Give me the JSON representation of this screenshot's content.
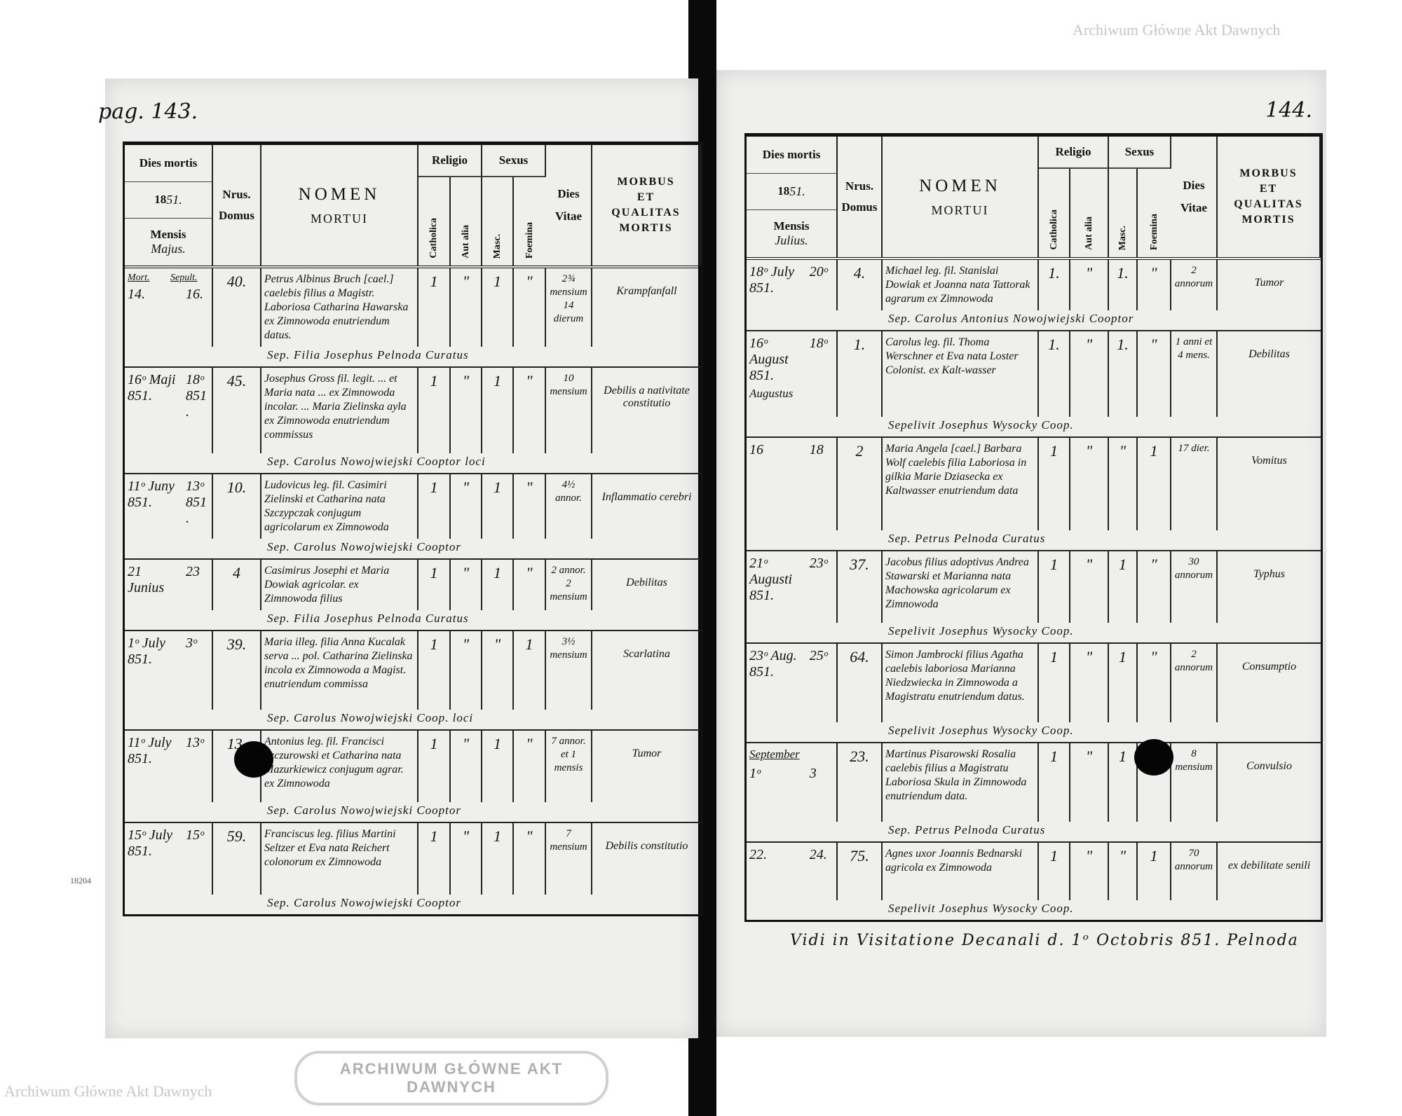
{
  "header": {
    "dies_mortis": "Dies mortis",
    "year_printed": "18",
    "year_written": "51.",
    "mensis": "Mensis",
    "nrus": "Nrus.",
    "domus": "Domus",
    "nomen": "NOMEN",
    "mortui": "MORTUI",
    "religio": "Religio",
    "catholica": "Catholica",
    "aut_alia": "Aut alia",
    "sexus": "Sexus",
    "masc": "Masc.",
    "foemina": "Foemina",
    "dies": "Dies",
    "vitae": "Vitae",
    "morbus": "MORBUS",
    "et": "ET",
    "qualitas": "QUALITAS",
    "mortis": "MORTIS"
  },
  "left": {
    "page_number": "pag. 143.",
    "month": "Majus.",
    "subheads": {
      "mort": "Mort.",
      "sepult": "Sepult."
    },
    "rows": [
      {
        "mort": "14.",
        "sepult": "16.",
        "domus": "40.",
        "nomen": "Petrus Albinus Bruch [cael.] caelebis filius a Magistr. Laboriosa Catharina Hawarska ex Zimnowoda enutriendum datus.",
        "cath": "1",
        "aut": "\"",
        "masc": "1",
        "foem": "\"",
        "vitae": "2¾ mensium 14 dierum",
        "morbus": "Krampfanfall",
        "sep": "Sep. Filia Josephus Pelnoda Curatus"
      },
      {
        "mort": "16ᵒ Maji 851.",
        "sepult": "18ᵒ 851.",
        "domus": "45.",
        "nomen": "Josephus Gross fil. legit. ... et Maria nata ... ex Zimnowoda incolar. ... Maria Zielinska ayla ex Zimnowoda enutriendum commissus",
        "cath": "1",
        "aut": "\"",
        "masc": "1",
        "foem": "\"",
        "vitae": "10 mensium",
        "morbus": "Debilis a nativitate constitutio",
        "sep": "Sep. Carolus Nowojwiejski Cooptor loci"
      },
      {
        "mort": "11ᵒ Juny 851.",
        "sepult": "13ᵒ 851.",
        "domus": "10.",
        "nomen": "Ludovicus leg. fil. Casimiri Zielinski et Catharina nata Szczypczak conjugum agricolarum ex Zimnowoda",
        "cath": "1",
        "aut": "\"",
        "masc": "1",
        "foem": "\"",
        "vitae": "4½ annor.",
        "morbus": "Inflammatio cerebri",
        "sep": "Sep. Carolus Nowojwiejski Cooptor"
      },
      {
        "mort": "21 Junius",
        "sepult": "23",
        "domus": "4",
        "nomen": "Casimirus Josephi et Maria Dowiak agricolar. ex Zimnowoda filius",
        "cath": "1",
        "aut": "\"",
        "masc": "1",
        "foem": "\"",
        "vitae": "2 annor. 2 mensium",
        "morbus": "Debilitas",
        "sep": "Sep. Filia Josephus Pelnoda Curatus"
      },
      {
        "mort": "1ᵒ July 851.",
        "sepult": "3ᵒ",
        "domus": "39.",
        "nomen": "Maria illeg. filia Anna Kucalak serva ... pol. Catharina Zielinska incola ex Zimnowoda a Magist. enutriendum commissa",
        "cath": "1",
        "aut": "\"",
        "masc": "\"",
        "foem": "1",
        "vitae": "3½ mensium",
        "morbus": "Scarlatina",
        "sep": "Sep. Carolus Nowojwiejski Coop. loci"
      },
      {
        "mort": "11ᵒ July 851.",
        "sepult": "13ᵒ",
        "domus": "13.",
        "nomen": "Antonius leg. fil. Francisci Szczurowski et Catharina nata Mazurkiewicz conjugum agrar. ex Zimnowoda",
        "cath": "1",
        "aut": "\"",
        "masc": "1",
        "foem": "\"",
        "vitae": "7 annor. et 1 mensis",
        "morbus": "Tumor",
        "sep": "Sep. Carolus Nowojwiejski Cooptor"
      },
      {
        "mort": "15ᵒ July 851.",
        "sepult": "15ᵒ",
        "domus": "59.",
        "nomen": "Franciscus leg. filius Martini Seltzer et Eva nata Reichert colonorum ex Zimnowoda",
        "cath": "1",
        "aut": "\"",
        "masc": "1",
        "foem": "\"",
        "vitae": "7 mensium",
        "morbus": "Debilis constitutio",
        "sep": "Sep. Carolus Nowojwiejski Cooptor"
      }
    ]
  },
  "right": {
    "page_number": "144.",
    "month": "Julius.",
    "month_change_august": "Augustus",
    "month_change_september": "September",
    "rows": [
      {
        "mort": "18ᵒ July 851.",
        "sepult": "20ᵒ",
        "domus": "4.",
        "nomen": "Michael leg. fil. Stanislai Dowiak et Joanna nata Tattorak agrarum ex Zimnowoda",
        "cath": "1.",
        "aut": "\"",
        "masc": "1.",
        "foem": "\"",
        "vitae": "2 annorum",
        "morbus": "Tumor",
        "sep": "Sep. Carolus Antonius Nowojwiejski Cooptor"
      },
      {
        "mort": "16ᵒ August 851.",
        "sepult": "18ᵒ",
        "domus": "1.",
        "nomen": "Carolus leg. fil. Thoma Werschner et Eva nata Loster Colonist. ex Kalt-wasser",
        "cath": "1.",
        "aut": "\"",
        "masc": "1.",
        "foem": "\"",
        "vitae": "1 anni et 4 mens.",
        "morbus": "Debilitas",
        "sep": "Sepelivit Josephus Wysocky Coop."
      },
      {
        "mort": "16",
        "sepult": "18",
        "domus": "2",
        "nomen": "Maria Angela [cael.] Barbara Wolf caelebis filia Laboriosa in gilkia Marie Dziasecka ex Kaltwasser enutriendum data",
        "cath": "1",
        "aut": "\"",
        "masc": "\"",
        "foem": "1",
        "vitae": "17 dier.",
        "morbus": "Vomitus",
        "sep": "Sep. Petrus Pelnoda Curatus"
      },
      {
        "mort": "21ᵒ Augusti 851.",
        "sepult": "23ᵒ",
        "domus": "37.",
        "nomen": "Jacobus filius adoptivus Andrea Stawarski et Marianna nata Machowska agricolarum ex Zimnowoda",
        "cath": "1",
        "aut": "\"",
        "masc": "1",
        "foem": "\"",
        "vitae": "30 annorum",
        "morbus": "Typhus",
        "sep": "Sepelivit Josephus Wysocky Coop."
      },
      {
        "mort": "23ᵒ Aug. 851.",
        "sepult": "25ᵒ",
        "domus": "64.",
        "nomen": "Simon Jambrocki filius Agatha caelebis laboriosa Marianna Niedzwiecka in Zimnowoda a Magistratu enutriendum datus.",
        "cath": "1",
        "aut": "\"",
        "masc": "1",
        "foem": "\"",
        "vitae": "2 annorum",
        "morbus": "Consumptio",
        "sep": "Sepelivit Josephus Wysocky Coop."
      },
      {
        "mort": "1ᵒ",
        "sepult": "3",
        "domus": "23.",
        "nomen": "Martinus Pisarowski Rosalia caelebis filius a Magistratu Laboriosa Skula in Zimnowoda enutriendum data.",
        "cath": "1",
        "aut": "\"",
        "masc": "1",
        "foem": "\"",
        "vitae": "8 mensium",
        "morbus": "Convulsio",
        "sep": "Sep. Petrus Pelnoda Curatus"
      },
      {
        "mort": "22.",
        "sepult": "24.",
        "domus": "75.",
        "nomen": "Agnes uxor Joannis Bednarski agricola ex Zimnowoda",
        "cath": "1",
        "aut": "\"",
        "masc": "\"",
        "foem": "1",
        "vitae": "70 annorum",
        "morbus": "ex debilitate senili",
        "sep": "Sepelivit Josephus Wysocky Coop."
      }
    ],
    "footer_note": "Vidi in Visitatione Decanali d. 1ᵒ Octobris 851. Pelnoda"
  },
  "watermark": "Archiwum Główne Akt Dawnych",
  "stamp_text": "ARCHIWUM GŁÓWNE AKT DAWNYCH",
  "margin_note": "18204"
}
